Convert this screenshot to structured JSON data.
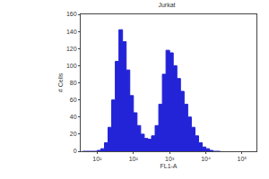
{
  "chart_data": {
    "type": "histogram",
    "title": "Jurkat",
    "x_label": "FL1-A",
    "y_label": "# Cells",
    "log": "x",
    "grid": false,
    "color": "#2323d8",
    "bins": [
      3.98,
      5.01,
      6.31,
      7.94,
      10,
      12.59,
      15.85,
      19.95,
      25.12,
      31.62,
      39.81,
      50.12,
      63.1,
      79.43,
      100,
      125.9,
      158.5,
      199.5,
      251.2,
      316.2,
      398.1,
      501.2,
      631,
      794.3,
      1000,
      1259,
      1585,
      1995,
      2512,
      3162,
      3981,
      5012,
      6310,
      7943,
      10000,
      12589,
      15849,
      19953,
      25119
    ],
    "counts": [
      0,
      0,
      0,
      0,
      1,
      3,
      10,
      28,
      60,
      105,
      142,
      128,
      95,
      65,
      45,
      30,
      20,
      15,
      14,
      18,
      30,
      55,
      90,
      118,
      115,
      100,
      85,
      70,
      55,
      40,
      28,
      18,
      10,
      5,
      3,
      1,
      0,
      0
    ],
    "xlim": [
      3.5,
      250000
    ],
    "xticks": [
      {
        "value": 10,
        "label": "10¹"
      },
      {
        "value": 100,
        "label": "10²"
      },
      {
        "value": 1000,
        "label": "10³"
      },
      {
        "value": 10000,
        "label": "10⁴"
      },
      {
        "value": 100000,
        "label": "10⁵"
      }
    ],
    "ylim": [
      0,
      160
    ],
    "yticks": [
      0,
      20,
      40,
      60,
      80,
      100,
      120,
      140,
      160
    ]
  }
}
